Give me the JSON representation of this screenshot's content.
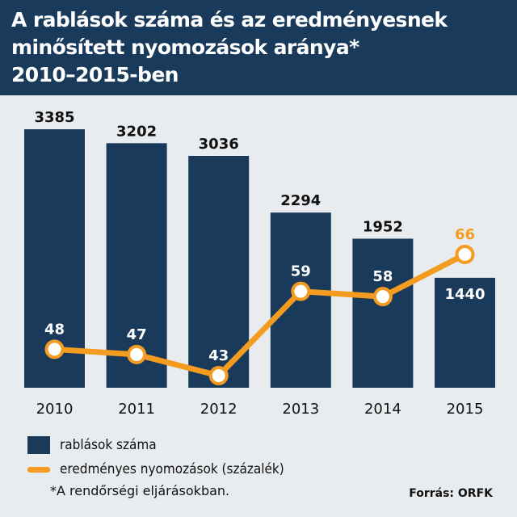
{
  "title_lines": [
    "A rablások száma és az eredményesnek",
    "minősített nyomozások aránya*",
    "2010–2015-ben"
  ],
  "chart_data": {
    "type": "bar",
    "categories": [
      "2010",
      "2011",
      "2012",
      "2013",
      "2014",
      "2015"
    ],
    "series": [
      {
        "name": "rablások száma",
        "type": "bar",
        "values": [
          3385,
          3202,
          3036,
          2294,
          1952,
          1440
        ]
      },
      {
        "name": "eredményes nyomozások (százalék)",
        "type": "line",
        "values": [
          48,
          47,
          43,
          59,
          58,
          66
        ]
      }
    ],
    "colors": {
      "bar": "#1a3a5c",
      "line": "#f39c1f",
      "background": "#e9ecef"
    },
    "grid": false,
    "legend_position": "bottom"
  },
  "legend": {
    "bar_label": "rablások száma",
    "line_label": "eredményes nyomozások (százalék)"
  },
  "footnote": "*A rendőrségi eljárásokban.",
  "source": "Forrás: ORFK"
}
